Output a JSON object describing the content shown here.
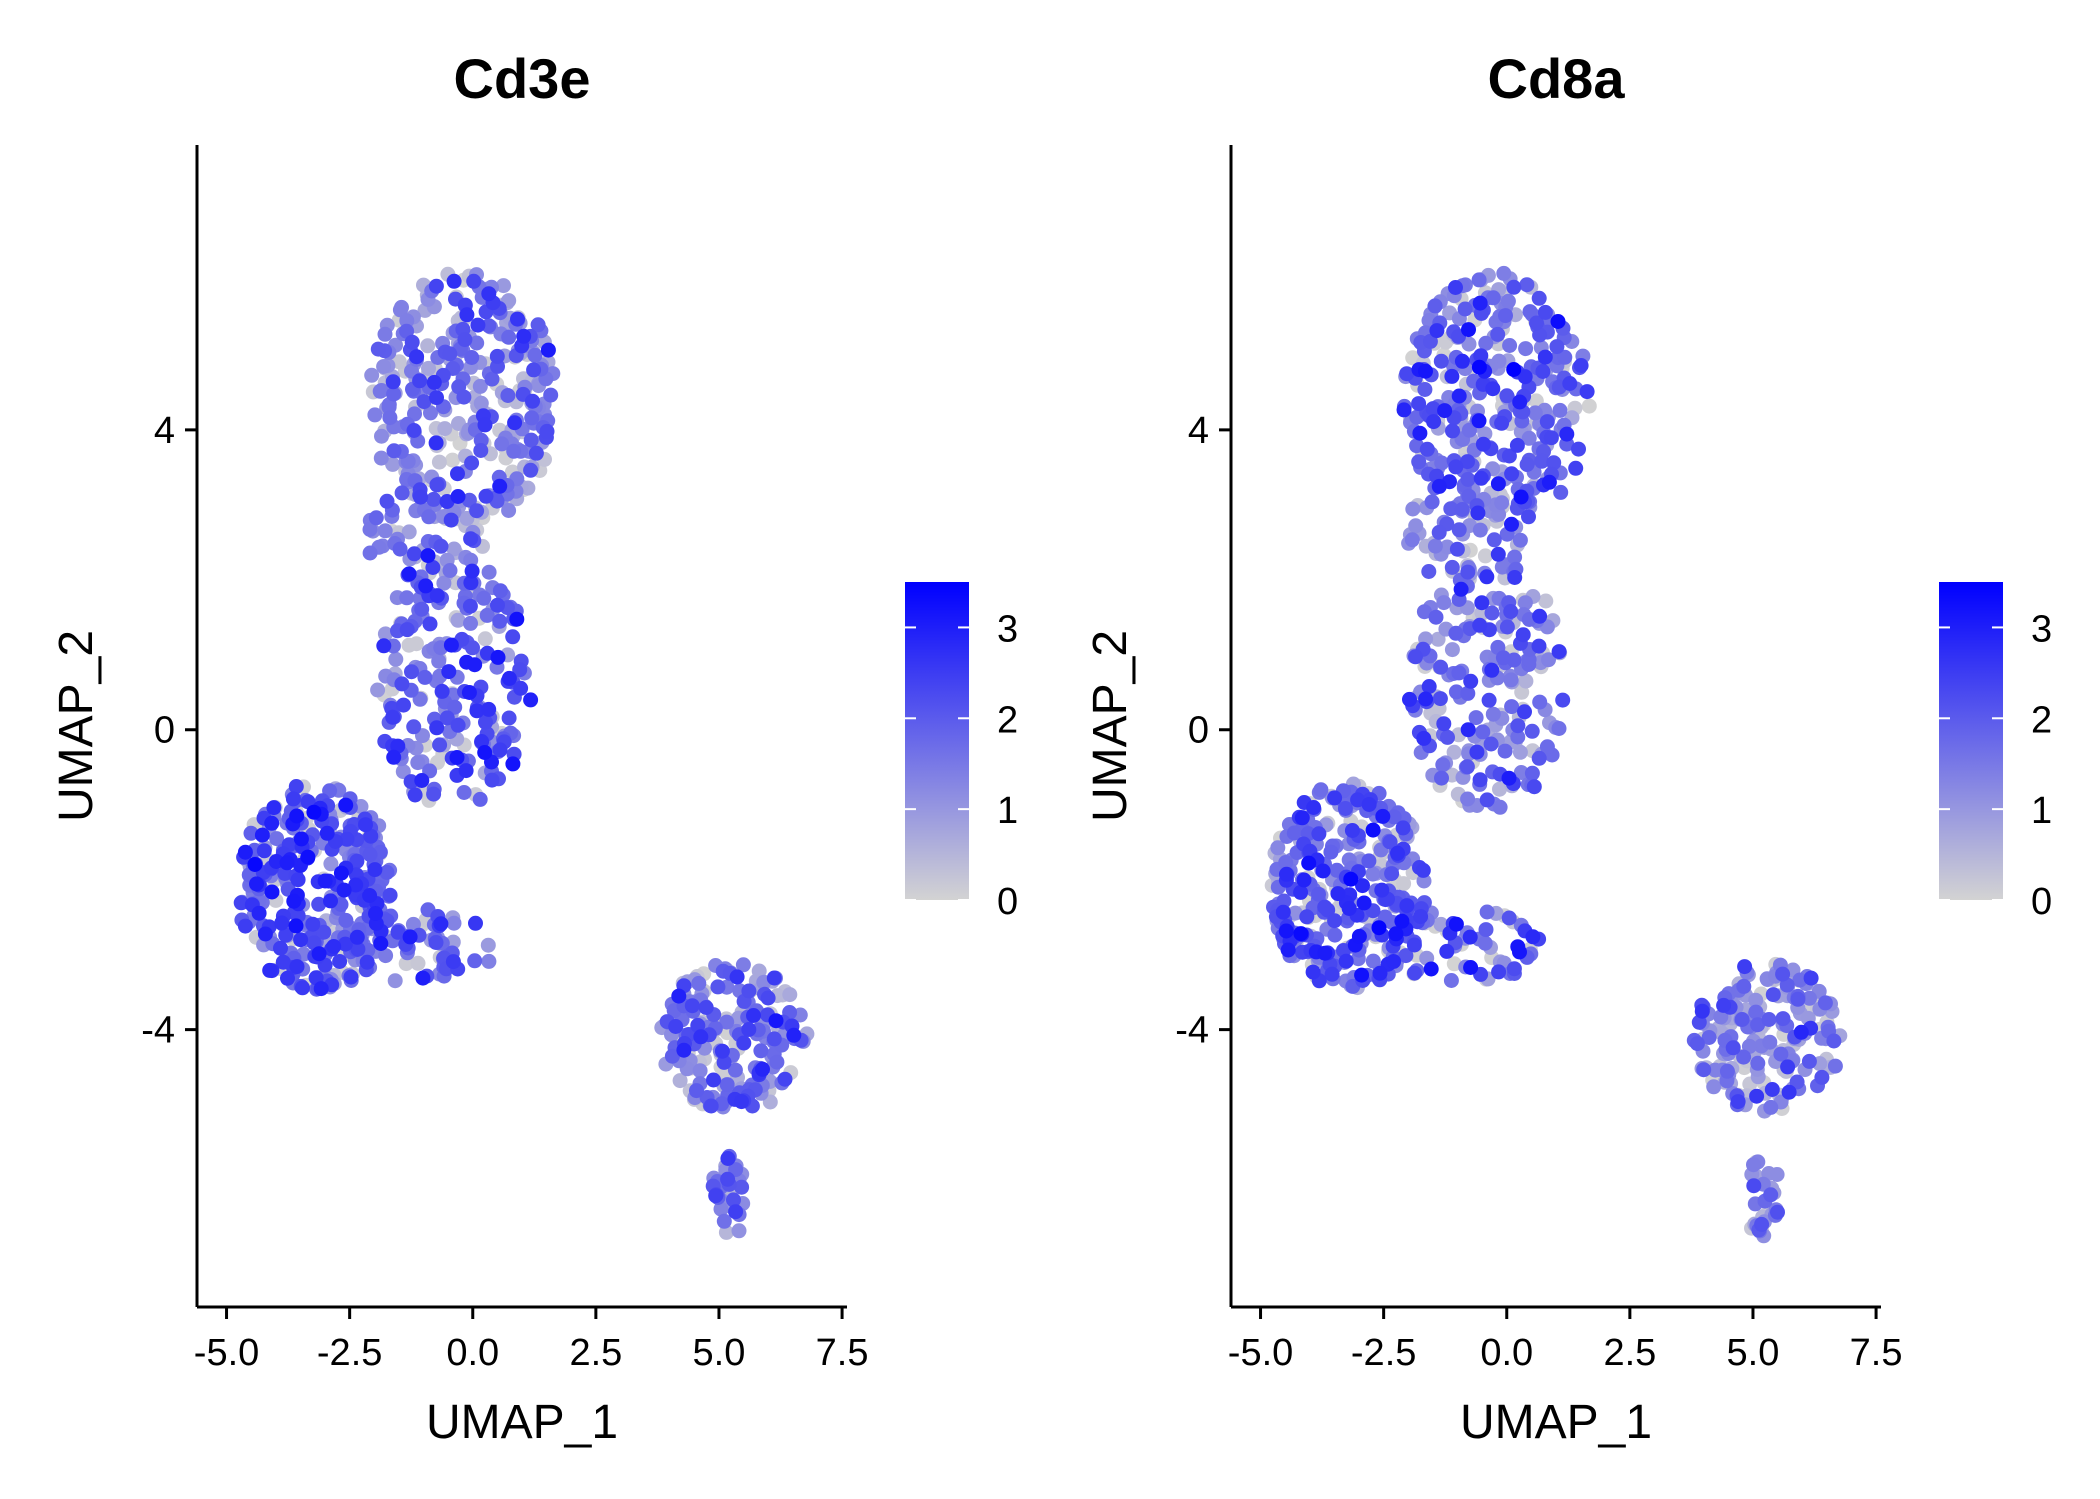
{
  "figure": {
    "colors": {
      "low": "#d3d3d3",
      "high": "#0000ff",
      "axis": "#000000"
    }
  },
  "chart_data": [
    {
      "type": "scatter",
      "title": "Cd3e",
      "xlabel": "UMAP_1",
      "ylabel": "UMAP_2",
      "xlim": [
        -5.6,
        7.6
      ],
      "ylim": [
        -7.7,
        7.8
      ],
      "xticks": [
        -5.0,
        -2.5,
        0.0,
        2.5,
        5.0,
        7.5
      ],
      "xtick_labels": [
        "-5.0",
        "-2.5",
        "0.0",
        "2.5",
        "5.0",
        "7.5"
      ],
      "yticks": [
        -4,
        0,
        4
      ],
      "ytick_labels": [
        "-4",
        "0",
        "4"
      ],
      "grid": false,
      "color_scale": {
        "min": 0,
        "max": 3.5,
        "low": "#d3d3d3",
        "high": "#0000ff"
      },
      "legend": {
        "position": "right",
        "ticks": [
          0,
          1,
          2,
          3
        ],
        "tick_labels": [
          "0",
          "1",
          "2",
          "3"
        ]
      },
      "clusters": [
        {
          "name": "upper cluster",
          "cx": -0.2,
          "cy": 4.4,
          "rx": 1.9,
          "ry": 1.7,
          "n": 330,
          "mean_expr": 1.45
        },
        {
          "name": "upper bridge",
          "cx": -0.9,
          "cy": 2.6,
          "rx": 1.3,
          "ry": 0.6,
          "n": 55,
          "mean_expr": 1.5
        },
        {
          "name": "middle cluster",
          "cx": -0.4,
          "cy": 0.6,
          "rx": 1.6,
          "ry": 1.7,
          "n": 210,
          "mean_expr": 1.8
        },
        {
          "name": "lower-left cluster",
          "cx": -3.2,
          "cy": -2.1,
          "rx": 1.6,
          "ry": 1.4,
          "n": 320,
          "mean_expr": 2.05
        },
        {
          "name": "lower tail",
          "cx": -0.9,
          "cy": -2.9,
          "rx": 1.6,
          "ry": 0.5,
          "n": 60,
          "mean_expr": 1.9
        },
        {
          "name": "right cluster",
          "cx": 5.3,
          "cy": -4.1,
          "rx": 1.5,
          "ry": 1.0,
          "n": 200,
          "mean_expr": 1.5
        },
        {
          "name": "right tail",
          "cx": 5.2,
          "cy": -6.2,
          "rx": 0.35,
          "ry": 0.6,
          "n": 30,
          "mean_expr": 1.5
        }
      ]
    },
    {
      "type": "scatter",
      "title": "Cd8a",
      "xlabel": "UMAP_1",
      "ylabel": "UMAP_2",
      "xlim": [
        -5.6,
        7.6
      ],
      "ylim": [
        -7.7,
        7.8
      ],
      "xticks": [
        -5.0,
        -2.5,
        0.0,
        2.5,
        5.0,
        7.5
      ],
      "xtick_labels": [
        "-5.0",
        "-2.5",
        "0.0",
        "2.5",
        "5.0",
        "7.5"
      ],
      "yticks": [
        -4,
        0,
        4
      ],
      "ytick_labels": [
        "-4",
        "0",
        "4"
      ],
      "grid": false,
      "color_scale": {
        "min": 0,
        "max": 3.5,
        "low": "#d3d3d3",
        "high": "#0000ff"
      },
      "legend": {
        "position": "right",
        "ticks": [
          0,
          1,
          2,
          3
        ],
        "tick_labels": [
          "0",
          "1",
          "2",
          "3"
        ]
      },
      "clusters": [
        {
          "name": "upper cluster",
          "cx": -0.2,
          "cy": 4.4,
          "rx": 1.9,
          "ry": 1.7,
          "n": 330,
          "mean_expr": 1.7
        },
        {
          "name": "upper bridge",
          "cx": -0.9,
          "cy": 2.6,
          "rx": 1.3,
          "ry": 0.6,
          "n": 55,
          "mean_expr": 1.2
        },
        {
          "name": "middle cluster",
          "cx": -0.4,
          "cy": 0.6,
          "rx": 1.6,
          "ry": 1.7,
          "n": 210,
          "mean_expr": 1.45
        },
        {
          "name": "lower-left cluster",
          "cx": -3.2,
          "cy": -2.1,
          "rx": 1.6,
          "ry": 1.4,
          "n": 320,
          "mean_expr": 1.9
        },
        {
          "name": "lower tail",
          "cx": -0.9,
          "cy": -2.9,
          "rx": 1.6,
          "ry": 0.5,
          "n": 60,
          "mean_expr": 1.9
        },
        {
          "name": "right cluster",
          "cx": 5.3,
          "cy": -4.1,
          "rx": 1.5,
          "ry": 1.0,
          "n": 200,
          "mean_expr": 1.3
        },
        {
          "name": "right tail",
          "cx": 5.2,
          "cy": -6.2,
          "rx": 0.35,
          "ry": 0.6,
          "n": 30,
          "mean_expr": 1.2
        }
      ]
    }
  ]
}
